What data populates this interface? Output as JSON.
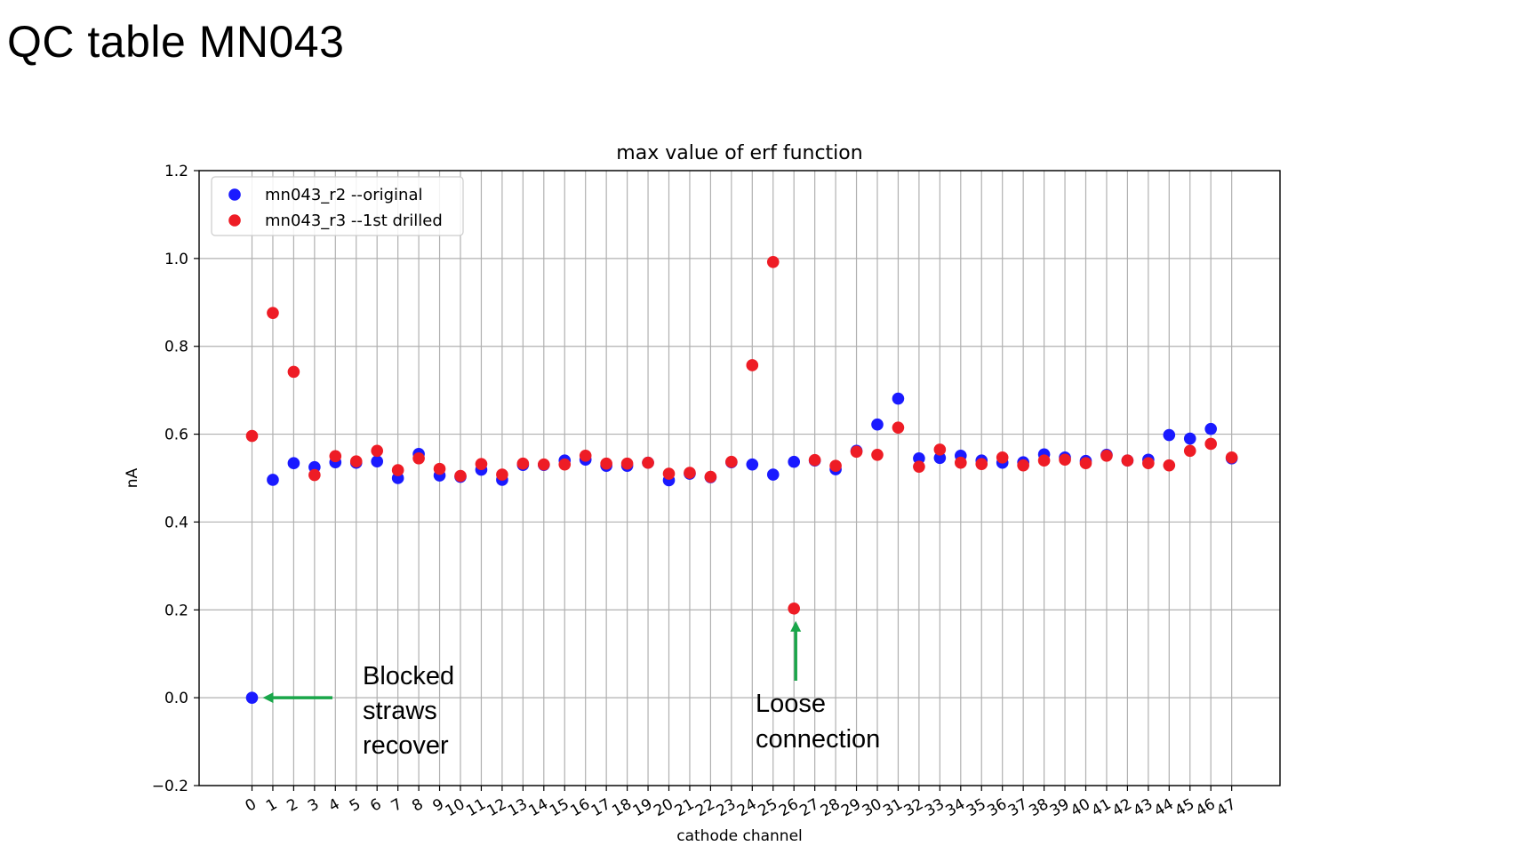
{
  "slide": {
    "title": "QC table MN043"
  },
  "chart_data": {
    "type": "scatter",
    "title": "max value of erf function",
    "xlabel": "cathode channel",
    "ylabel": "nA",
    "ylim": [
      -0.2,
      1.2
    ],
    "yticks": [
      -0.2,
      0.0,
      0.2,
      0.4,
      0.6,
      0.8,
      1.0,
      1.2
    ],
    "ytick_labels": [
      "−0.2",
      "0.0",
      "0.2",
      "0.4",
      "0.6",
      "0.8",
      "1.0",
      "1.2"
    ],
    "x": [
      0,
      1,
      2,
      3,
      4,
      5,
      6,
      7,
      8,
      9,
      10,
      11,
      12,
      13,
      14,
      15,
      16,
      17,
      18,
      19,
      20,
      21,
      22,
      23,
      24,
      25,
      26,
      27,
      28,
      29,
      30,
      31,
      32,
      33,
      34,
      35,
      36,
      37,
      38,
      39,
      40,
      41,
      42,
      43,
      44,
      45,
      46,
      47
    ],
    "grid": true,
    "legend_position": "upper-left",
    "series": [
      {
        "name": "mn043_r2 --original",
        "color": "#1a1aff",
        "values": [
          0.0,
          0.496,
          0.534,
          0.525,
          0.536,
          0.535,
          0.538,
          0.5,
          0.555,
          0.506,
          0.503,
          0.519,
          0.496,
          0.53,
          0.53,
          0.54,
          0.542,
          0.528,
          0.528,
          0.535,
          0.495,
          0.51,
          0.502,
          0.536,
          0.531,
          0.508,
          0.537,
          0.54,
          0.52,
          0.562,
          0.622,
          0.681,
          0.545,
          0.546,
          0.551,
          0.54,
          0.535,
          0.536,
          0.554,
          0.547,
          0.539,
          0.553,
          0.54,
          0.542,
          0.598,
          0.59,
          0.612,
          0.545
        ]
      },
      {
        "name": "mn043_r3 --1st drilled",
        "color": "#ee1c25",
        "values": [
          0.596,
          0.876,
          0.742,
          0.507,
          0.55,
          0.538,
          0.562,
          0.518,
          0.545,
          0.521,
          0.505,
          0.532,
          0.508,
          0.533,
          0.531,
          0.531,
          0.551,
          0.533,
          0.533,
          0.535,
          0.51,
          0.512,
          0.503,
          0.537,
          0.757,
          0.992,
          0.203,
          0.541,
          0.528,
          0.56,
          0.553,
          0.615,
          0.526,
          0.565,
          0.535,
          0.532,
          0.547,
          0.529,
          0.54,
          0.542,
          0.534,
          0.551,
          0.54,
          0.534,
          0.529,
          0.562,
          0.578,
          0.547
        ]
      }
    ],
    "annotations": [
      {
        "lines": [
          "Blocked",
          "straws",
          "recover"
        ],
        "arrow_color": "#1aa64a",
        "points_to_channel": 0,
        "points_to_value": 0.0
      },
      {
        "lines": [
          "Loose",
          "connection"
        ],
        "arrow_color": "#1aa64a",
        "points_to_channel": 26,
        "points_to_value": 0.203
      }
    ]
  }
}
